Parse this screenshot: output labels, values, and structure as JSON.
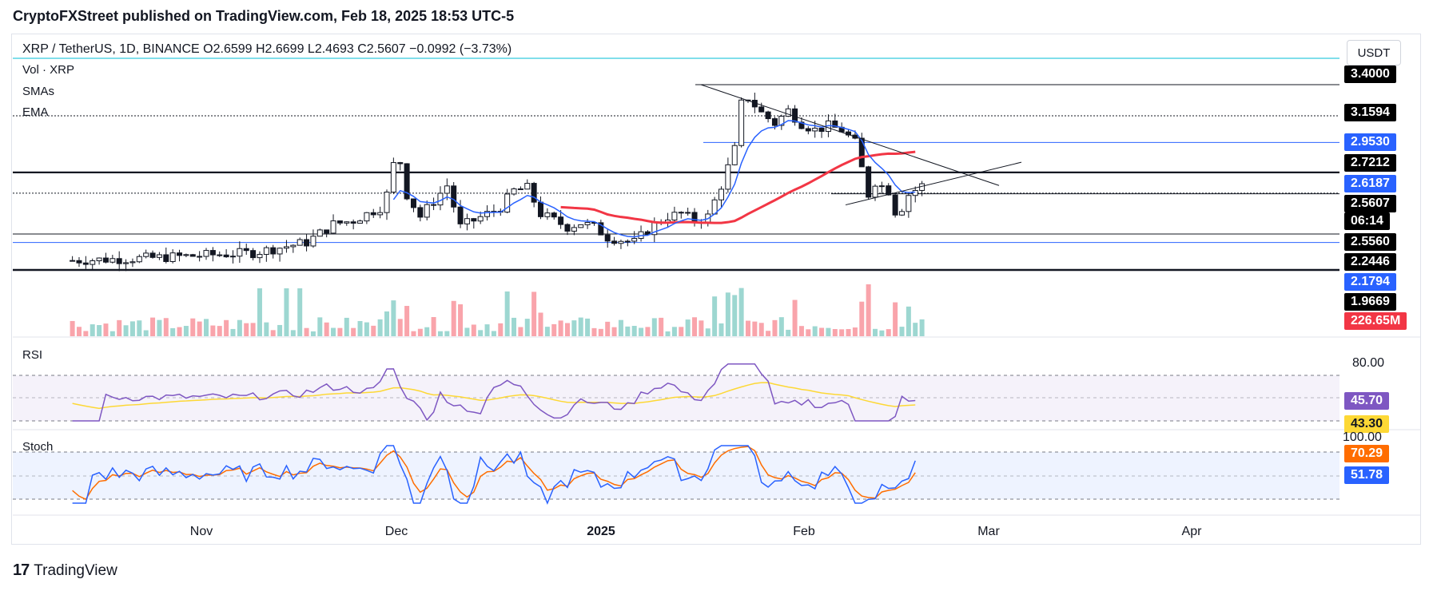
{
  "header": {
    "publisher_line": "CryptoFXStreet published on TradingView.com, Feb 18, 2025 18:53 UTC-5"
  },
  "symbol_line": "XRP / TetherUS, 1D, BINANCE  O2.6599  H2.6699  L2.4693  C2.5607  −0.0992 (−3.73%)",
  "indicators": [
    "Vol · XRP",
    "SMAs",
    "EMA"
  ],
  "currency_button": "USDT",
  "price_labels": [
    {
      "text": "3.4000",
      "bg": "#000000"
    },
    {
      "text": "3.1594",
      "bg": "#000000"
    },
    {
      "text": "2.9530",
      "bg": "#2962ff"
    },
    {
      "text": "2.7212",
      "bg": "#000000"
    },
    {
      "text": "2.6187",
      "bg": "#2962ff"
    },
    {
      "text": "2.5607",
      "bg": "#000000"
    },
    {
      "text": "06:14",
      "bg": "#000000"
    },
    {
      "text": "2.5560",
      "bg": "#000000"
    },
    {
      "text": "2.2446",
      "bg": "#000000"
    },
    {
      "text": "2.1794",
      "bg": "#2962ff"
    },
    {
      "text": "1.9669",
      "bg": "#000000"
    },
    {
      "text": "226.65M",
      "bg": "#f23645"
    }
  ],
  "rsi": {
    "label": "RSI",
    "upper": "80.00",
    "value": "45.70",
    "value_bg": "#7e57c2",
    "ma": "43.30",
    "ma_bg": "#fdd835"
  },
  "stoch": {
    "label": "Stoch",
    "upper": "100.00",
    "k": "70.29",
    "k_bg": "#ff6d00",
    "d": "51.78",
    "d_bg": "#2962ff"
  },
  "x_axis": [
    "Nov",
    "Dec",
    "2025",
    "Feb",
    "Mar",
    "Apr"
  ],
  "footer": {
    "brand": "TradingView",
    "logo": "17"
  },
  "colors": {
    "up": "#26a69a",
    "down": "#131722",
    "sma_red": "#f23645",
    "ema_blue": "#2962ff",
    "rsi": "#7e57c2",
    "rsi_ma": "#fdd835"
  },
  "chart_data": {
    "type": "candlestick",
    "title": "XRP / TetherUS, 1D, BINANCE",
    "ohlc_last": {
      "open": 2.6599,
      "high": 2.6699,
      "low": 2.4693,
      "close": 2.5607,
      "change": -0.0992,
      "change_pct": -3.73
    },
    "horizontal_levels": [
      3.4,
      3.1594,
      2.953,
      2.7212,
      2.6187,
      2.5607,
      2.556,
      2.2446,
      2.1794,
      1.9669
    ],
    "last_volume": "226.65M",
    "rsi_last": 45.7,
    "rsi_ma_last": 43.3,
    "stoch_k_last": 70.29,
    "stoch_d_last": 51.78,
    "x_ticks": [
      "Nov",
      "Dec",
      "2025",
      "Feb",
      "Mar",
      "Apr"
    ]
  }
}
